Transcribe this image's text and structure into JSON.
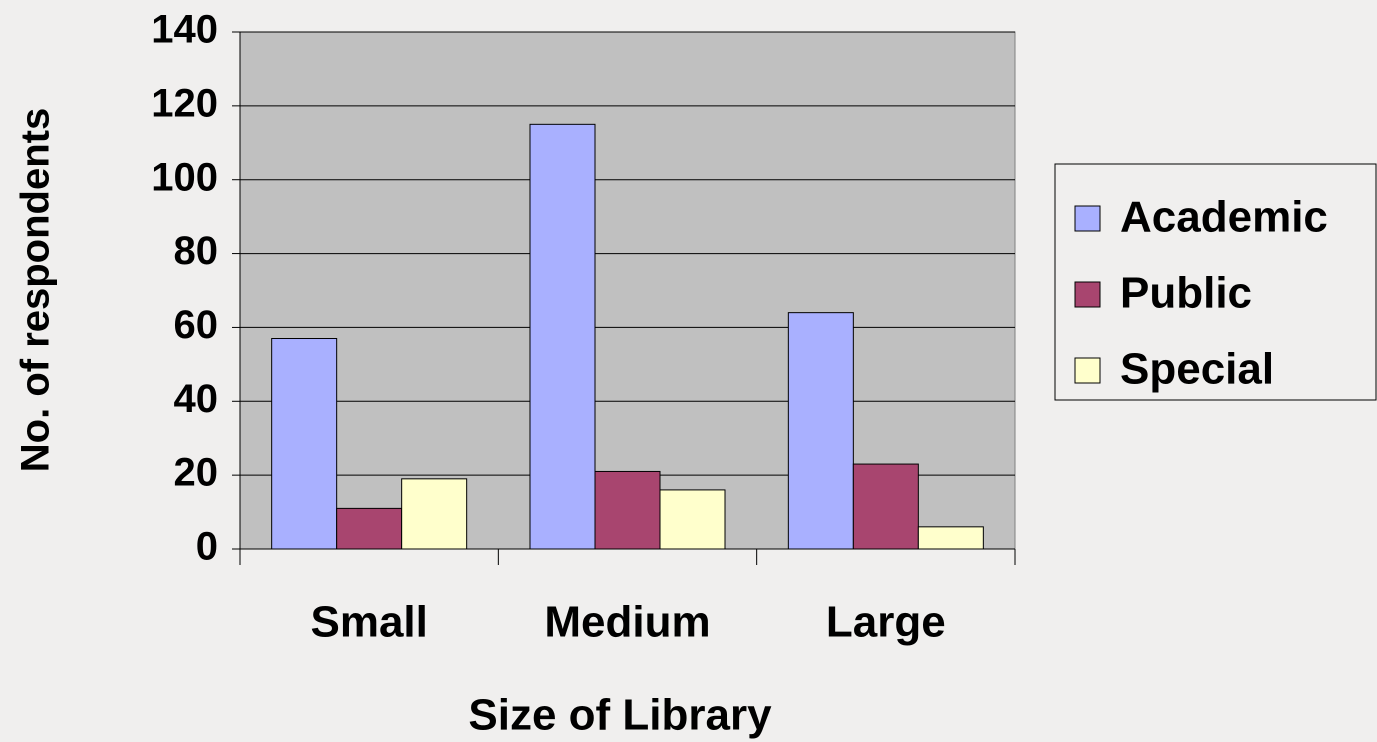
{
  "chart_data": {
    "type": "bar",
    "x_label": "Size of Library",
    "y_label": "No. of respondents",
    "categories": [
      "Small",
      "Medium",
      "Large"
    ],
    "series": [
      {
        "name": "Academic",
        "color": "#a9b0ff",
        "values": [
          57,
          115,
          64
        ]
      },
      {
        "name": "Public",
        "color": "#a8456f",
        "values": [
          11,
          21,
          23
        ]
      },
      {
        "name": "Special",
        "color": "#ffffcc",
        "values": [
          19,
          16,
          6
        ]
      }
    ],
    "ylim": [
      0,
      140
    ],
    "yticks": [
      0,
      20,
      40,
      60,
      80,
      100,
      120,
      140
    ],
    "grid": true,
    "legend": "right",
    "plot_background": "#c0c0c0"
  }
}
